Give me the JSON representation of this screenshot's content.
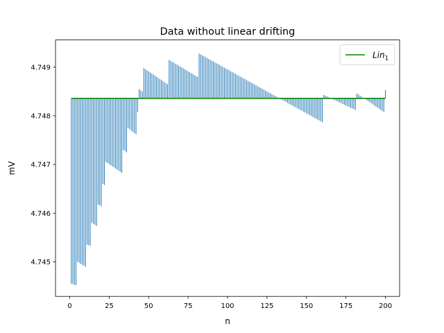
{
  "chart_data": {
    "type": "line",
    "title": "Data without linear drifting",
    "xlabel": "n",
    "ylabel": "mV",
    "xlim": [
      -9,
      209
    ],
    "ylim": [
      4.74429,
      4.74956
    ],
    "xticks": [
      0,
      25,
      50,
      75,
      100,
      125,
      150,
      175,
      200
    ],
    "yticks": [
      4.745,
      4.746,
      4.747,
      4.748,
      4.749
    ],
    "ytick_labels": [
      "4.745",
      "4.746",
      "4.747",
      "4.748",
      "4.749"
    ],
    "grid": false,
    "legend": {
      "position": "top-right",
      "entries": [
        "Lin"
      ],
      "subscript": "1"
    },
    "baseline": 4.74836,
    "segments": [
      {
        "x_start": 1,
        "x_end": 4,
        "v_start": 4.74455,
        "v_end": 4.74452
      },
      {
        "x_start": 5,
        "x_end": 10,
        "v_start": 4.745,
        "v_end": 4.7449
      },
      {
        "x_start": 11,
        "x_end": 13,
        "v_start": 4.74535,
        "v_end": 4.74533
      },
      {
        "x_start": 14,
        "x_end": 17,
        "v_start": 4.7458,
        "v_end": 4.74574
      },
      {
        "x_start": 18,
        "x_end": 20,
        "v_start": 4.74618,
        "v_end": 4.74614
      },
      {
        "x_start": 21,
        "x_end": 22,
        "v_start": 4.7466,
        "v_end": 4.74658
      },
      {
        "x_start": 23,
        "x_end": 33,
        "v_start": 4.74705,
        "v_end": 4.74683
      },
      {
        "x_start": 34,
        "x_end": 36,
        "v_start": 4.7473,
        "v_end": 4.74725
      },
      {
        "x_start": 37,
        "x_end": 42,
        "v_start": 4.74775,
        "v_end": 4.74762
      },
      {
        "x_start": 43,
        "x_end": 43,
        "v_start": 4.74808,
        "v_end": 4.74808
      },
      {
        "x_start": 44,
        "x_end": 46,
        "v_start": 4.74855,
        "v_end": 4.7485
      },
      {
        "x_start": 47,
        "x_end": 62,
        "v_start": 4.74898,
        "v_end": 4.74865
      },
      {
        "x_start": 63,
        "x_end": 81,
        "v_start": 4.74915,
        "v_end": 4.7488
      },
      {
        "x_start": 82,
        "x_end": 160,
        "v_start": 4.74928,
        "v_end": 4.74787
      },
      {
        "x_start": 161,
        "x_end": 181,
        "v_start": 4.74843,
        "v_end": 4.74812
      },
      {
        "x_start": 182,
        "x_end": 199,
        "v_start": 4.74846,
        "v_end": 4.74808
      },
      {
        "x_start": 200,
        "x_end": 200,
        "v_start": 4.74853,
        "v_end": 4.74853
      }
    ],
    "series": [
      {
        "name": "",
        "color": "#1f77b4",
        "style": "vertical-lines"
      },
      {
        "name": "Lin",
        "color": "#008000",
        "style": "line",
        "x": [
          1,
          200
        ],
        "y": [
          4.74836,
          4.74836
        ]
      }
    ]
  }
}
